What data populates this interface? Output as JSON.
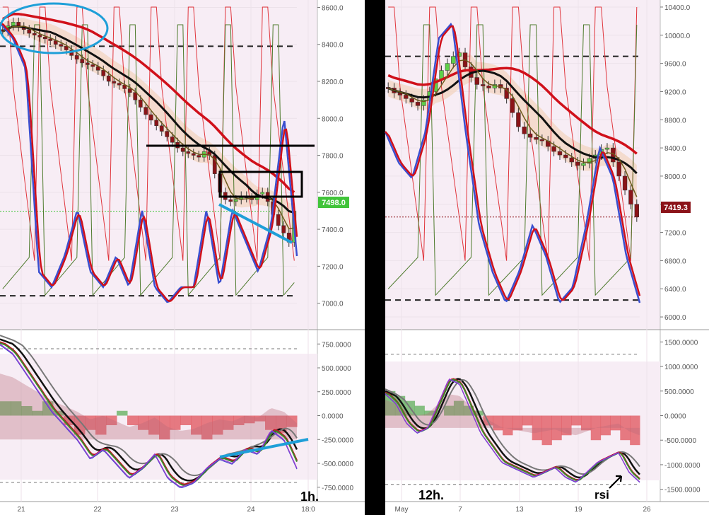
{
  "colors": {
    "panel_bg": "#ffffff",
    "zone_fill": "#f6eaf4",
    "divider": "#000000",
    "axis_text": "#555555",
    "grid": "#e8e8e8",
    "price_red": "#d0101a",
    "price_blue": "#3a4fd0",
    "olive_line": "#4d7a2c",
    "thin_red": "#e0353c",
    "ribbon_fill": "#f3d6c4",
    "bull_candle": "#5fcf49",
    "bear_candle": "#8a1418",
    "cyan_annot": "#1e9fd8",
    "current_price_green": "#41c43a",
    "current_price_red": "#8b1319"
  },
  "left_chart": {
    "timeframe_label": "1h.",
    "price_axis_ticks": [
      "8600.0",
      "8400.0",
      "8200.0",
      "8000.0",
      "7800.0",
      "7600.0",
      "7400.0",
      "7200.0",
      "7000.0"
    ],
    "price_axis_values": [
      8600,
      8400,
      8200,
      8000,
      7800,
      7600,
      7400,
      7200,
      7000
    ],
    "current_price": "7498.0",
    "current_price_value": 7498,
    "dashed_levels": [
      8390,
      7040
    ],
    "horizontal_black_level": 7800,
    "osc_axis_ticks": [
      "750.0000",
      "500.0000",
      "250.0000",
      "0.0000",
      "-250.0000",
      "-500.0000",
      "-750.0000"
    ],
    "osc_axis_values": [
      750,
      500,
      250,
      0,
      -250,
      -500,
      -750
    ],
    "osc_dashed_levels": [
      700,
      -700
    ],
    "time_axis_ticks": [
      "21",
      "22",
      "23",
      "24",
      "18:0"
    ]
  },
  "right_chart": {
    "timeframe_label": "12h.",
    "annotation": "rsi",
    "price_axis_ticks": [
      "10400.0",
      "10000.0",
      "9600.0",
      "9200.0",
      "8800.0",
      "8400.0",
      "8000.0",
      "7600.0",
      "7200.0",
      "6800.0",
      "6400.0",
      "6000.0"
    ],
    "price_axis_values": [
      10400,
      10000,
      9600,
      9200,
      8800,
      8400,
      8000,
      7600,
      7200,
      6800,
      6400,
      6000
    ],
    "current_price": "7419.3",
    "current_price_value": 7419.3,
    "dashed_levels": [
      9700,
      6240
    ],
    "osc_axis_ticks": [
      "1500.0000",
      "1000.0000",
      "500.0000",
      "0.0000",
      "-500.0000",
      "-1000.0000",
      "-1500.0000"
    ],
    "osc_axis_values": [
      1500,
      1000,
      500,
      0,
      -500,
      -1000,
      -1500
    ],
    "osc_dashed_levels": [
      1250,
      -1400
    ],
    "time_axis_ticks": [
      "May",
      "7",
      "13",
      "19",
      "26"
    ]
  },
  "chart_data": [
    {
      "type": "candlestick",
      "title": "",
      "timeframe": "1h.",
      "x": [
        "21",
        "22",
        "23",
        "24",
        "18:0"
      ],
      "ylim": [
        6880,
        8600
      ],
      "close_series": [
        8470,
        8500,
        8520,
        8495,
        8480,
        8460,
        8450,
        8440,
        8430,
        8420,
        8400,
        8390,
        8370,
        8340,
        8320,
        8300,
        8290,
        8280,
        8260,
        8230,
        8200,
        8190,
        8180,
        8160,
        8140,
        8100,
        8060,
        8020,
        7990,
        7960,
        7930,
        7900,
        7870,
        7840,
        7820,
        7810,
        7800,
        7790,
        7820,
        7800,
        7700,
        7600,
        7560,
        7550,
        7560,
        7580,
        7570,
        7560,
        7590,
        7600,
        7550,
        7480,
        7420,
        7380,
        7330,
        7498
      ],
      "current_price": 7498,
      "dashed_levels": [
        8390,
        7040
      ]
    },
    {
      "type": "candlestick",
      "title": "",
      "timeframe": "12h.",
      "x": [
        "May",
        "7",
        "13",
        "19",
        "26"
      ],
      "ylim": [
        5880,
        10500
      ],
      "close_series": [
        9250,
        9180,
        9150,
        9100,
        9050,
        9000,
        9080,
        9200,
        9380,
        9500,
        9600,
        9700,
        9750,
        9550,
        9400,
        9300,
        9280,
        9250,
        9300,
        9250,
        9100,
        8900,
        8700,
        8600,
        8550,
        8520,
        8500,
        8420,
        8350,
        8300,
        8260,
        8200,
        8150,
        8180,
        8250,
        8300,
        8380,
        8400,
        8200,
        8000,
        7800,
        7600,
        7419.3
      ],
      "current_price": 7419.3,
      "dashed_levels": [
        9700,
        6240
      ]
    }
  ]
}
